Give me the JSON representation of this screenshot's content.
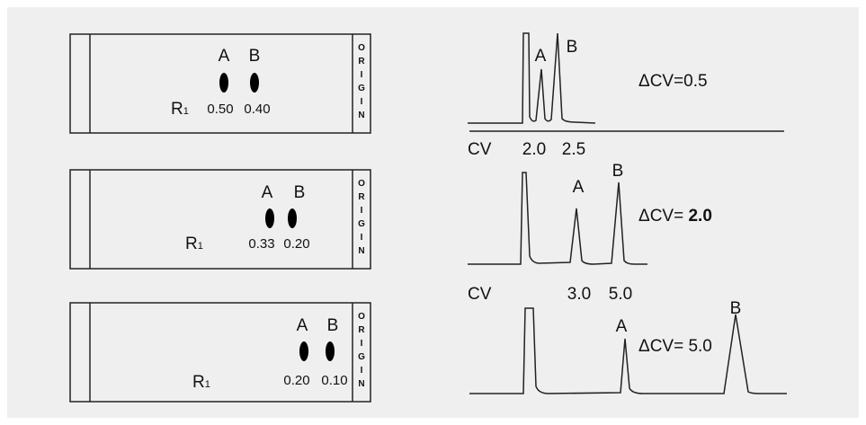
{
  "plates": [
    {
      "spots": [
        "A",
        "B"
      ],
      "rf_label": "R",
      "rf_sub": "1",
      "rf_values": [
        "0.50",
        "0.40"
      ],
      "origin": "ORIGIN"
    },
    {
      "spots": [
        "A",
        "B"
      ],
      "rf_label": "R",
      "rf_sub": "1",
      "rf_values": [
        "0.33",
        "0.20"
      ],
      "origin": "ORIGIN"
    },
    {
      "spots": [
        "A",
        "B"
      ],
      "rf_label": "R",
      "rf_sub": "1",
      "rf_values": [
        "0.20",
        "0.10"
      ],
      "origin": "ORIGIN"
    }
  ],
  "chromatograms": [
    {
      "peaks": [
        "A",
        "B"
      ],
      "delta": "ΔCV=0.5",
      "axis_label": "CV",
      "ticks": [
        "2.0",
        "2.5"
      ]
    },
    {
      "peaks": [
        "A",
        "B"
      ],
      "delta_prefix": "ΔCV= ",
      "delta_value": "2.0",
      "axis_label": "CV",
      "ticks": [
        "3.0",
        "5.0"
      ]
    },
    {
      "peaks": [
        "A",
        "B"
      ],
      "delta": "ΔCV= 5.0"
    }
  ],
  "colors": {
    "background": "#efefef",
    "ink": "#111111"
  }
}
